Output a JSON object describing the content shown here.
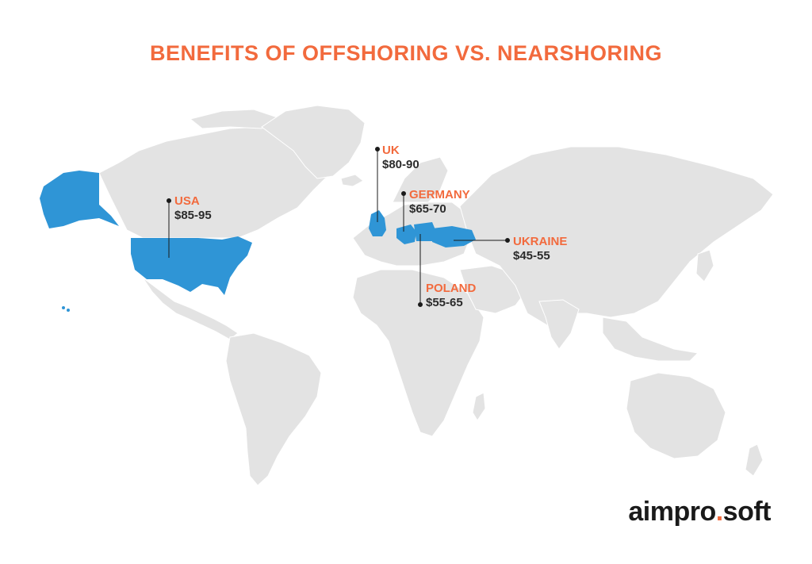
{
  "title": "BENEFITS OF OFFSHORING VS. NEARSHORING",
  "colors": {
    "title": "#f26a3d",
    "land": "#e3e3e3",
    "highlight": "#2f95d6",
    "country_label": "#f26a3d",
    "rate_label": "#2b2b2b"
  },
  "markers": [
    {
      "country": "USA",
      "rate": "$85-95"
    },
    {
      "country": "UK",
      "rate": "$80-90"
    },
    {
      "country": "GERMANY",
      "rate": "$65-70"
    },
    {
      "country": "UKRAINE",
      "rate": "$45-55"
    },
    {
      "country": "POLAND",
      "rate": "$55-65"
    }
  ],
  "logo": {
    "left": "aimpro",
    "dot": ".",
    "right": "soft"
  }
}
